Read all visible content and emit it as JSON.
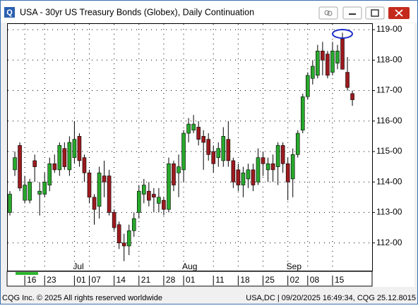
{
  "window": {
    "icon": "Q"
  },
  "chart_data": {
    "type": "candlestick",
    "title": "USA - 30yr US Treasury Bonds (Globex), Daily Continuation",
    "categories": [
      null,
      null,
      null,
      "16",
      null,
      null,
      null,
      "23",
      null,
      null,
      null,
      null,
      null,
      "01",
      null,
      null,
      "07",
      null,
      null,
      null,
      null,
      "14",
      null,
      null,
      null,
      null,
      "21",
      null,
      null,
      null,
      null,
      "28",
      null,
      null,
      null,
      "01",
      null,
      null,
      null,
      null,
      null,
      "11",
      null,
      null,
      null,
      null,
      "18",
      null,
      null,
      null,
      null,
      "25",
      null,
      null,
      null,
      null,
      "02",
      null,
      null,
      null,
      "08",
      null,
      null,
      null,
      null,
      "15",
      null,
      null,
      null,
      null
    ],
    "months": [
      null,
      null,
      null,
      null,
      null,
      null,
      null,
      null,
      null,
      null,
      null,
      null,
      null,
      "Jul",
      null,
      null,
      null,
      null,
      null,
      null,
      null,
      null,
      null,
      null,
      null,
      null,
      null,
      null,
      null,
      null,
      null,
      null,
      null,
      null,
      null,
      "Aug",
      null,
      null,
      null,
      null,
      null,
      null,
      null,
      null,
      null,
      null,
      null,
      null,
      null,
      null,
      null,
      null,
      null,
      null,
      null,
      null,
      "Sep",
      null,
      null,
      null,
      null,
      null,
      null,
      null,
      null,
      null,
      null,
      null,
      null,
      null
    ],
    "open": [
      113.0,
      114.4,
      115.2,
      113.4,
      113.4,
      114.7,
      113.6,
      113.6,
      113.9,
      114.6,
      114.4,
      115.1,
      114.4,
      114.8,
      115.5,
      114.8,
      114.3,
      113.5,
      113.2,
      114.2,
      114.2,
      113.0,
      112.6,
      112.0,
      111.9,
      112.4,
      113.0,
      113.6,
      113.7,
      113.6,
      113.3,
      113.4,
      113.1,
      114.6,
      114.3,
      114.4,
      115.6,
      115.7,
      115.8,
      115.5,
      115.4,
      115.0,
      114.8,
      114.7,
      115.4,
      114.7,
      114.4,
      113.9,
      114.1,
      114.4,
      114.0,
      114.8,
      114.4,
      114.6,
      114.5,
      115.2,
      114.6,
      114.1,
      114.9,
      115.7,
      116.8,
      117.4,
      117.5,
      118.3,
      118.2,
      117.6,
      117.9,
      118.7,
      117.6,
      116.9
    ],
    "high": [
      113.7,
      115.0,
      115.3,
      114.2,
      114.1,
      114.9,
      114.0,
      114.3,
      114.8,
      114.9,
      115.3,
      115.3,
      115.5,
      116.0,
      115.6,
      114.9,
      114.4,
      113.6,
      114.5,
      114.7,
      114.4,
      113.1,
      112.7,
      112.3,
      112.6,
      113.0,
      113.9,
      114.1,
      114.0,
      113.8,
      113.8,
      113.5,
      114.8,
      114.7,
      114.9,
      115.7,
      116.1,
      116.2,
      116.0,
      115.7,
      115.6,
      115.2,
      115.3,
      115.8,
      116.0,
      114.8,
      114.6,
      114.5,
      114.6,
      114.6,
      115.1,
      115.0,
      114.8,
      114.9,
      115.3,
      115.3,
      114.8,
      115.1,
      115.7,
      116.9,
      117.6,
      118.0,
      118.5,
      118.6,
      118.3,
      118.6,
      118.5,
      118.9,
      118.1,
      117.0
    ],
    "low": [
      112.9,
      114.2,
      113.7,
      113.3,
      113.3,
      114.0,
      112.9,
      113.5,
      113.7,
      114.3,
      114.2,
      114.4,
      114.2,
      114.6,
      114.5,
      114.0,
      113.3,
      112.6,
      112.8,
      113.5,
      112.9,
      112.4,
      111.8,
      111.4,
      111.6,
      112.2,
      112.8,
      113.3,
      113.2,
      113.0,
      113.0,
      112.9,
      113.0,
      113.7,
      113.5,
      114.0,
      115.3,
      115.6,
      115.2,
      114.4,
      114.7,
      114.3,
      114.5,
      114.5,
      114.5,
      113.8,
      113.7,
      113.5,
      113.8,
      113.7,
      113.9,
      114.2,
      114.0,
      114.0,
      113.9,
      114.3,
      113.4,
      113.5,
      114.8,
      115.6,
      116.7,
      117.2,
      117.4,
      117.5,
      117.4,
      117.5,
      117.7,
      117.7,
      117.0,
      116.5
    ],
    "close": [
      113.6,
      114.8,
      113.8,
      113.9,
      114.0,
      114.5,
      113.7,
      114.0,
      114.6,
      114.4,
      115.2,
      114.5,
      115.3,
      115.4,
      114.7,
      114.3,
      113.5,
      113.1,
      114.3,
      114.0,
      113.0,
      112.5,
      112.0,
      111.9,
      112.4,
      112.8,
      113.7,
      113.9,
      113.4,
      113.5,
      113.5,
      113.1,
      114.6,
      113.9,
      114.5,
      115.6,
      115.9,
      115.9,
      115.4,
      115.3,
      114.9,
      114.6,
      115.1,
      115.5,
      114.7,
      114.0,
      113.9,
      114.3,
      114.4,
      113.9,
      114.8,
      114.6,
      114.6,
      114.4,
      115.2,
      114.6,
      114.0,
      114.9,
      115.6,
      116.8,
      117.5,
      117.8,
      118.3,
      118.0,
      117.5,
      118.3,
      118.3,
      117.7,
      117.1,
      116.7
    ],
    "up_color": "#28a82c",
    "down_color": "#9c1a1e",
    "ylim": [
      111.09,
      119.21
    ],
    "yticks": [
      {
        "value": 112,
        "label": "112-00"
      },
      {
        "value": 113,
        "label": "113-00"
      },
      {
        "value": 114,
        "label": "114-00"
      },
      {
        "value": 115,
        "label": "115-00"
      },
      {
        "value": 116,
        "label": "116-00"
      },
      {
        "value": 117,
        "label": "117-00"
      },
      {
        "value": 118,
        "label": "118-00"
      },
      {
        "value": 119,
        "label": "119-00"
      }
    ],
    "grid": true
  },
  "status_bar": {
    "left": "CQG Inc. © 2025 All rights reserved worldwide",
    "right": "USA,DC | 09/20/2025 16:49:34, CQG 25.12.8015"
  }
}
